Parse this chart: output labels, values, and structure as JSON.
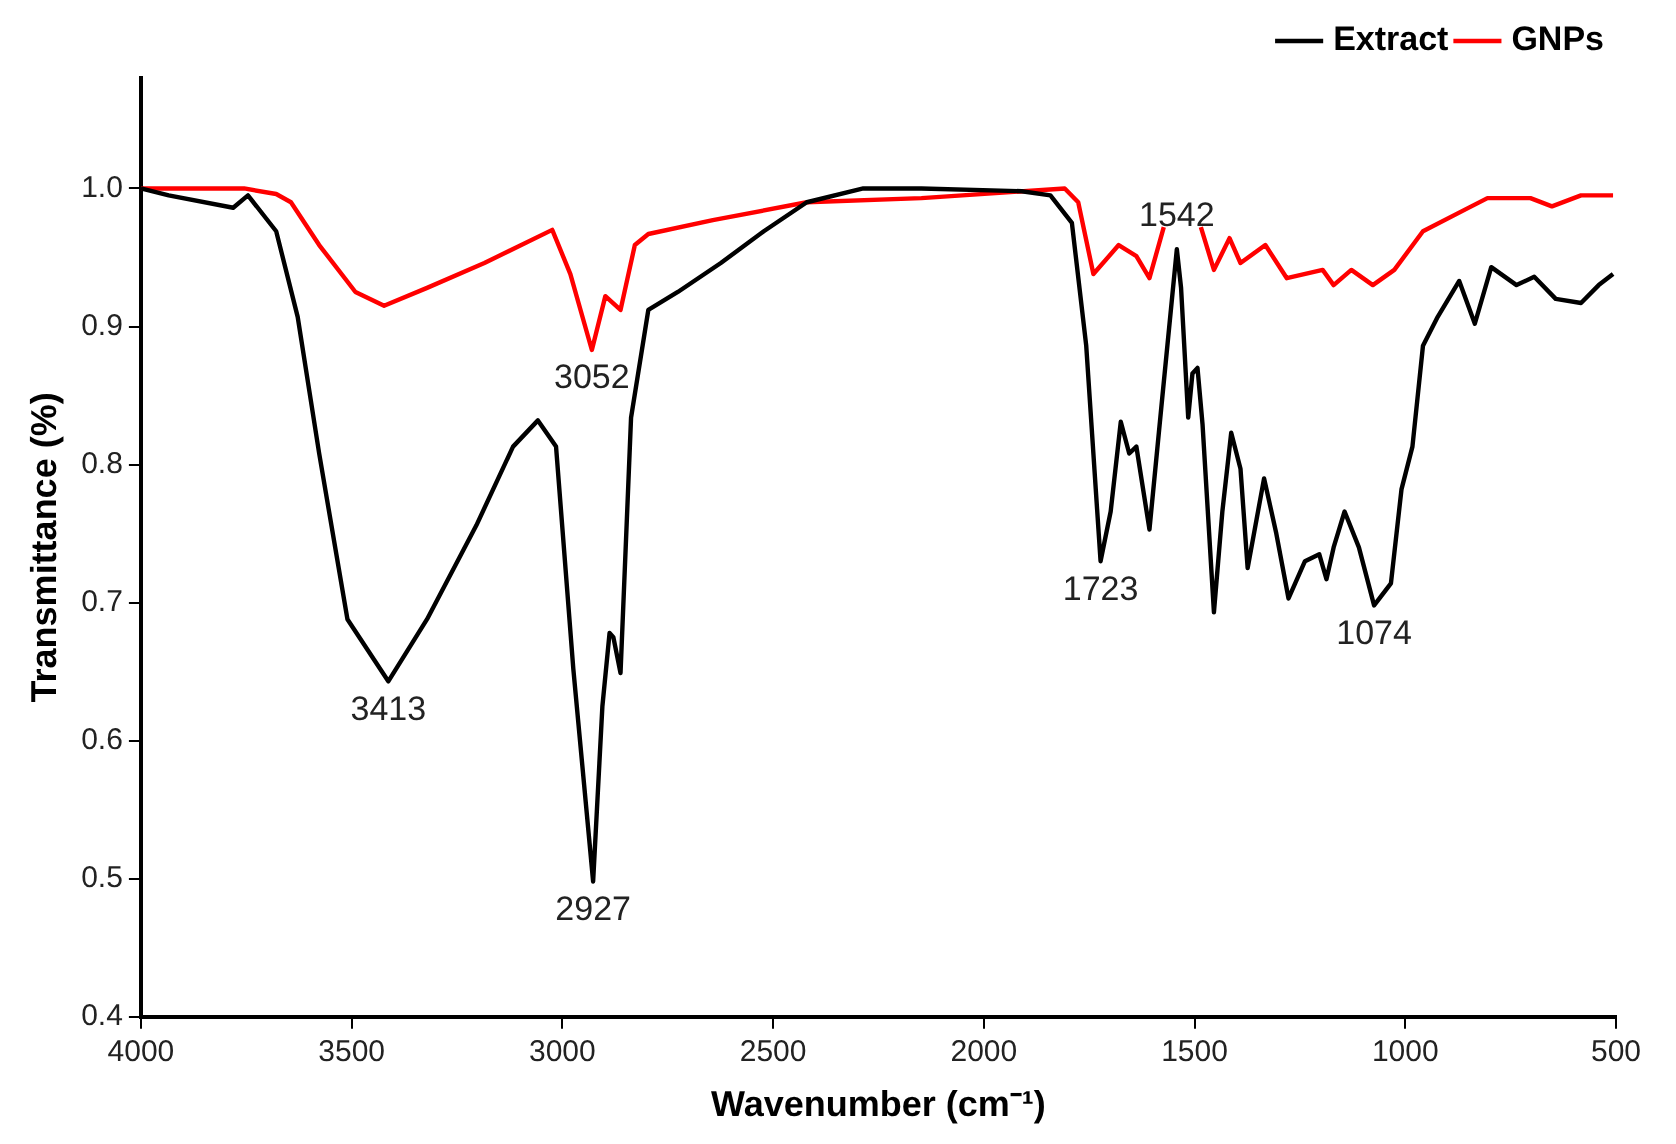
{
  "chart_data": {
    "type": "line",
    "xlabel": "Wavenumber (cm⁻¹)",
    "ylabel": "Transmittance (%)",
    "xlim": [
      4000,
      500
    ],
    "xticks": [
      4000,
      3500,
      3000,
      2500,
      2000,
      1500,
      1000,
      500
    ],
    "ylim": [
      0.4,
      1.08
    ],
    "yticks": [
      0.4,
      0.5,
      0.6,
      0.7,
      0.8,
      0.9,
      {
        "value": 1.0,
        "label": "1.0"
      }
    ],
    "grid": false,
    "legend": "top right",
    "marker": "none",
    "line_style": "solid",
    "series": [
      {
        "name": "Extract",
        "color": "#000000",
        "x": [
          4000,
          3934,
          3781,
          3746,
          3679,
          3628,
          3577,
          3510,
          3413,
          3321,
          3204,
          3117,
          3058,
          3015,
          2974,
          2927,
          2905,
          2888,
          2879,
          2862,
          2837,
          2796,
          2726,
          2624,
          2522,
          2420,
          2286,
          2148,
          1910,
          1842,
          1791,
          1757,
          1723,
          1699,
          1675,
          1655,
          1638,
          1607,
          1578,
          1542,
          1532,
          1515,
          1505,
          1493,
          1481,
          1454,
          1434,
          1413,
          1391,
          1374,
          1335,
          1306,
          1277,
          1238,
          1204,
          1187,
          1170,
          1144,
          1110,
          1074,
          1034,
          1009,
          983,
          958,
          923,
          872,
          835,
          796,
          736,
          694,
          643,
          583,
          541,
          507
        ],
        "values": [
          1.0,
          0.995,
          0.986,
          0.995,
          0.969,
          0.907,
          0.808,
          0.688,
          0.643,
          0.688,
          0.756,
          0.813,
          0.832,
          0.813,
          0.652,
          0.498,
          0.625,
          0.678,
          0.675,
          0.649,
          0.834,
          0.912,
          0.925,
          0.946,
          0.969,
          0.99,
          1.0,
          1.0,
          0.998,
          0.995,
          0.975,
          0.886,
          0.73,
          0.766,
          0.831,
          0.808,
          0.813,
          0.753,
          0.844,
          0.956,
          0.928,
          0.834,
          0.866,
          0.87,
          0.829,
          0.693,
          0.766,
          0.823,
          0.797,
          0.725,
          0.79,
          0.75,
          0.703,
          0.73,
          0.735,
          0.717,
          0.74,
          0.766,
          0.74,
          0.698,
          0.714,
          0.782,
          0.813,
          0.886,
          0.907,
          0.933,
          0.902,
          0.943,
          0.93,
          0.936,
          0.92,
          0.917,
          0.93,
          0.938
        ]
      },
      {
        "name": "GNPs",
        "color": "#ff0000",
        "x": [
          4000,
          3832,
          3755,
          3679,
          3644,
          3577,
          3491,
          3423,
          3321,
          3185,
          3024,
          2981,
          2930,
          2898,
          2862,
          2828,
          2796,
          2643,
          2420,
          2148,
          1808,
          1776,
          1740,
          1680,
          1638,
          1607,
          1573,
          1530,
          1485,
          1454,
          1417,
          1391,
          1332,
          1281,
          1196,
          1170,
          1128,
          1077,
          1026,
          958,
          856,
          805,
          703,
          652,
          583,
          507
        ],
        "values": [
          1.0,
          1.0,
          1.0,
          0.996,
          0.99,
          0.959,
          0.925,
          0.915,
          0.928,
          0.946,
          0.97,
          0.938,
          0.883,
          0.922,
          0.912,
          0.959,
          0.967,
          0.977,
          0.99,
          0.993,
          1.0,
          0.99,
          0.938,
          0.959,
          0.951,
          0.935,
          0.972,
          null,
          0.972,
          0.941,
          0.964,
          0.946,
          0.959,
          0.935,
          0.941,
          0.93,
          0.941,
          0.93,
          0.941,
          0.969,
          0.985,
          0.993,
          0.993,
          0.987,
          0.995,
          0.995
        ]
      }
    ],
    "annotations": [
      {
        "text": "3413",
        "x": 3413,
        "y": 0.643
      },
      {
        "text": "2927",
        "x": 2927,
        "y": 0.498
      },
      {
        "text": "3052",
        "x": 2930,
        "y": 0.883
      },
      {
        "text": "1723",
        "x": 1723,
        "y": 0.73
      },
      {
        "text": "1542",
        "x": 1542,
        "y": 0.956
      },
      {
        "text": "1074",
        "x": 1074,
        "y": 0.698
      }
    ]
  }
}
